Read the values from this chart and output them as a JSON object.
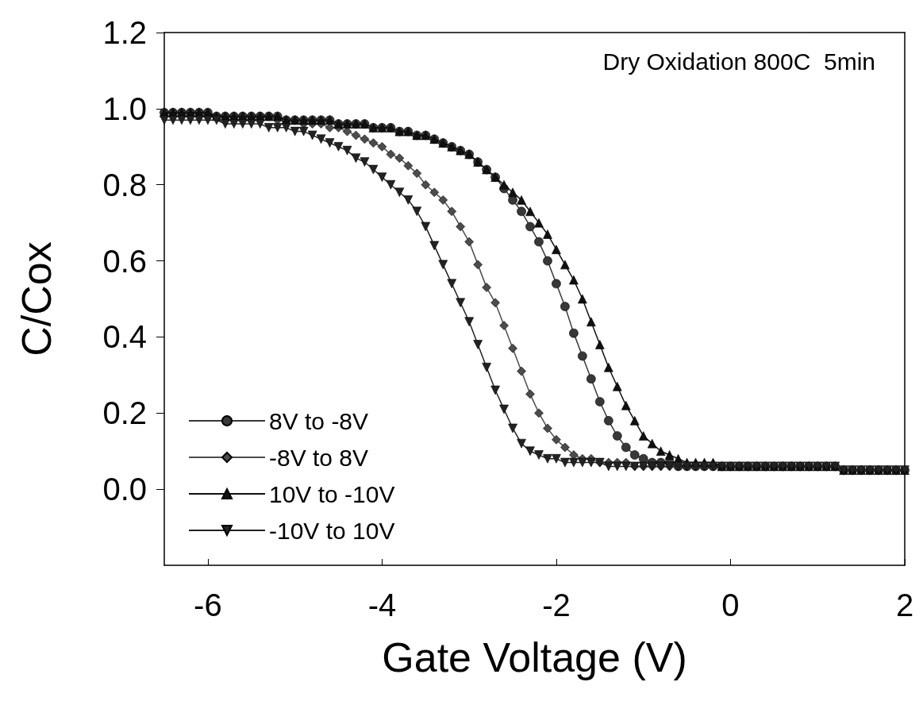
{
  "chart_data": {
    "type": "line",
    "xlabel": "Gate Voltage (V)",
    "ylabel": "C/Cox",
    "annotations": [
      "Dry Oxidation 800C  5min"
    ],
    "x": [
      -6.5,
      -6.4,
      -6.3,
      -6.2,
      -6.1,
      -6.0,
      -5.9,
      -5.8,
      -5.7,
      -5.6,
      -5.5,
      -5.4,
      -5.3,
      -5.2,
      -5.1,
      -5.0,
      -4.9,
      -4.8,
      -4.7,
      -4.6,
      -4.5,
      -4.4,
      -4.3,
      -4.2,
      -4.1,
      -4.0,
      -3.9,
      -3.8,
      -3.7,
      -3.6,
      -3.5,
      -3.4,
      -3.3,
      -3.2,
      -3.1,
      -3.0,
      -2.9,
      -2.8,
      -2.7,
      -2.6,
      -2.5,
      -2.4,
      -2.3,
      -2.2,
      -2.1,
      -2.0,
      -1.9,
      -1.8,
      -1.7,
      -1.6,
      -1.5,
      -1.4,
      -1.3,
      -1.2,
      -1.1,
      -1.0,
      -0.9,
      -0.8,
      -0.7,
      -0.6,
      -0.5,
      -0.4,
      -0.3,
      -0.2,
      -0.1,
      0.0,
      0.1,
      0.2,
      0.3,
      0.4,
      0.5,
      0.6,
      0.7,
      0.8,
      0.9,
      1.0,
      1.1,
      1.2,
      1.3,
      1.4,
      1.5,
      1.6,
      1.7,
      1.8,
      1.9,
      2.0
    ],
    "series": [
      {
        "name": "8V to -8V",
        "color": "#383838",
        "marker": "circle",
        "values": [
          0.99,
          0.99,
          0.99,
          0.99,
          0.99,
          0.99,
          0.98,
          0.98,
          0.98,
          0.98,
          0.98,
          0.98,
          0.98,
          0.98,
          0.97,
          0.97,
          0.97,
          0.97,
          0.97,
          0.97,
          0.96,
          0.96,
          0.96,
          0.96,
          0.95,
          0.95,
          0.95,
          0.94,
          0.94,
          0.93,
          0.93,
          0.92,
          0.91,
          0.9,
          0.89,
          0.88,
          0.86,
          0.84,
          0.82,
          0.79,
          0.76,
          0.73,
          0.69,
          0.65,
          0.6,
          0.54,
          0.48,
          0.41,
          0.35,
          0.29,
          0.23,
          0.18,
          0.14,
          0.11,
          0.09,
          0.08,
          0.07,
          0.07,
          0.07,
          0.06,
          0.06,
          0.06,
          0.06,
          0.06,
          0.06,
          0.06,
          0.06,
          0.06,
          0.06,
          0.06,
          0.06,
          0.06,
          0.06,
          0.06,
          0.06,
          0.06,
          0.06,
          0.06,
          0.05,
          0.05,
          0.05,
          0.05,
          0.05,
          0.05,
          0.05,
          0.05
        ]
      },
      {
        "name": "-8V to 8V",
        "color": "#4c4c4c",
        "marker": "diamond",
        "values": [
          0.99,
          0.99,
          0.99,
          0.99,
          0.99,
          0.98,
          0.98,
          0.98,
          0.98,
          0.98,
          0.98,
          0.98,
          0.98,
          0.97,
          0.97,
          0.97,
          0.96,
          0.96,
          0.96,
          0.95,
          0.95,
          0.94,
          0.93,
          0.92,
          0.91,
          0.9,
          0.88,
          0.87,
          0.85,
          0.83,
          0.8,
          0.78,
          0.76,
          0.73,
          0.69,
          0.65,
          0.59,
          0.53,
          0.49,
          0.43,
          0.37,
          0.31,
          0.25,
          0.2,
          0.16,
          0.13,
          0.11,
          0.09,
          0.08,
          0.08,
          0.07,
          0.07,
          0.07,
          0.07,
          0.06,
          0.06,
          0.06,
          0.06,
          0.06,
          0.06,
          0.06,
          0.06,
          0.06,
          0.06,
          0.06,
          0.06,
          0.06,
          0.06,
          0.06,
          0.06,
          0.06,
          0.06,
          0.06,
          0.06,
          0.06,
          0.06,
          0.06,
          0.06,
          0.05,
          0.05,
          0.05,
          0.05,
          0.05,
          0.05,
          0.05,
          0.05
        ]
      },
      {
        "name": "10V to -10V",
        "color": "#101010",
        "marker": "triangle",
        "values": [
          0.99,
          0.99,
          0.99,
          0.99,
          0.99,
          0.99,
          0.98,
          0.98,
          0.98,
          0.98,
          0.98,
          0.98,
          0.98,
          0.98,
          0.97,
          0.97,
          0.97,
          0.97,
          0.97,
          0.97,
          0.96,
          0.96,
          0.96,
          0.96,
          0.95,
          0.95,
          0.95,
          0.94,
          0.94,
          0.93,
          0.93,
          0.92,
          0.91,
          0.9,
          0.89,
          0.88,
          0.86,
          0.84,
          0.82,
          0.8,
          0.78,
          0.76,
          0.73,
          0.7,
          0.67,
          0.63,
          0.59,
          0.55,
          0.5,
          0.44,
          0.38,
          0.32,
          0.27,
          0.22,
          0.18,
          0.14,
          0.12,
          0.1,
          0.09,
          0.08,
          0.07,
          0.07,
          0.07,
          0.07,
          0.06,
          0.06,
          0.06,
          0.06,
          0.06,
          0.06,
          0.06,
          0.06,
          0.06,
          0.06,
          0.06,
          0.06,
          0.06,
          0.06,
          0.05,
          0.05,
          0.05,
          0.05,
          0.05,
          0.05,
          0.05,
          0.05
        ]
      },
      {
        "name": "-10V to 10V",
        "color": "#222222",
        "marker": "triangle-down",
        "values": [
          0.97,
          0.97,
          0.97,
          0.97,
          0.97,
          0.97,
          0.97,
          0.96,
          0.96,
          0.96,
          0.96,
          0.96,
          0.95,
          0.95,
          0.95,
          0.94,
          0.94,
          0.93,
          0.92,
          0.91,
          0.9,
          0.89,
          0.87,
          0.86,
          0.84,
          0.82,
          0.8,
          0.78,
          0.76,
          0.73,
          0.69,
          0.64,
          0.59,
          0.54,
          0.49,
          0.44,
          0.38,
          0.32,
          0.26,
          0.21,
          0.16,
          0.12,
          0.1,
          0.09,
          0.08,
          0.08,
          0.07,
          0.07,
          0.07,
          0.07,
          0.07,
          0.06,
          0.06,
          0.06,
          0.06,
          0.06,
          0.06,
          0.06,
          0.06,
          0.06,
          0.06,
          0.06,
          0.06,
          0.06,
          0.06,
          0.06,
          0.06,
          0.06,
          0.06,
          0.06,
          0.06,
          0.06,
          0.06,
          0.06,
          0.06,
          0.06,
          0.06,
          0.06,
          0.05,
          0.05,
          0.05,
          0.05,
          0.05,
          0.05,
          0.05,
          0.05
        ]
      }
    ],
    "xlim": [
      -6.5,
      2
    ],
    "xticks": [
      -6,
      -4,
      -2,
      0,
      2
    ],
    "ylim": [
      -0.2,
      1.2
    ],
    "yticks": [
      {
        "value": 0,
        "label": "0.0"
      },
      {
        "value": 0.2,
        "label": "0.2"
      },
      {
        "value": 0.4,
        "label": "0.4"
      },
      {
        "value": 0.6,
        "label": "0.6"
      },
      {
        "value": 0.8,
        "label": "0.8"
      },
      {
        "value": 1,
        "label": "1.0"
      },
      {
        "value": 1.2,
        "label": "1.2"
      }
    ],
    "grid": false,
    "legend": "bottom left",
    "line_style": "solid"
  }
}
